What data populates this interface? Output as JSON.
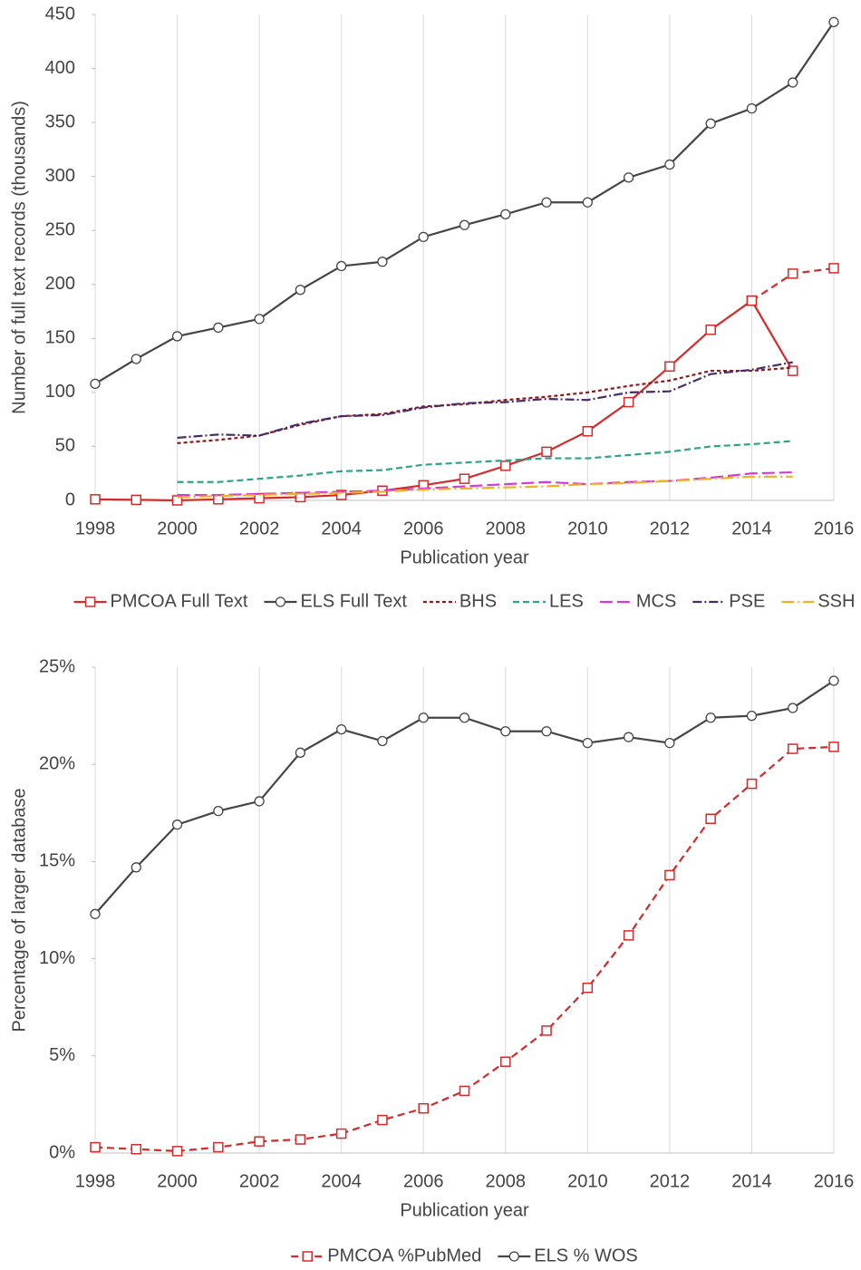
{
  "chart_data": [
    {
      "type": "line",
      "xlabel": "Publication year",
      "ylabel": "Number of full text records (thousands)",
      "x": [
        1998,
        1999,
        2000,
        2001,
        2002,
        2003,
        2004,
        2005,
        2006,
        2007,
        2008,
        2009,
        2010,
        2011,
        2012,
        2013,
        2014,
        2015,
        2016
      ],
      "xlim": [
        1998,
        2016
      ],
      "xticks": [
        1998,
        2000,
        2002,
        2004,
        2006,
        2008,
        2010,
        2012,
        2014,
        2016
      ],
      "ylim": [
        0,
        450
      ],
      "yticks": [
        0,
        50,
        100,
        150,
        200,
        250,
        300,
        350,
        400,
        450
      ],
      "xgrid": true,
      "series": [
        {
          "name": "PMCOA Full Text",
          "color": "#d42a2a",
          "dash": "none",
          "marker": "square",
          "values": [
            1,
            0.5,
            0,
            1,
            2,
            3,
            5,
            9,
            14,
            20,
            32,
            45,
            64,
            91,
            124,
            158,
            185,
            120,
            null
          ]
        },
        {
          "name": "ELS Full Text",
          "color": "#454545",
          "dash": "none",
          "marker": "circle",
          "values": [
            108,
            131,
            152,
            160,
            168,
            195,
            217,
            221,
            244,
            255,
            265,
            276,
            276,
            299,
            311,
            349,
            363,
            387,
            443
          ]
        },
        {
          "name": "BHS",
          "color": "#8b1a1a",
          "dash": "4,3",
          "marker": "none",
          "values": [
            null,
            null,
            53,
            56,
            60,
            70,
            78,
            80,
            87,
            89,
            93,
            96,
            100,
            106,
            111,
            120,
            120,
            123,
            null
          ]
        },
        {
          "name": "LES",
          "color": "#2aa58a",
          "dash": "7,4",
          "marker": "none",
          "values": [
            null,
            null,
            17,
            17,
            20,
            23,
            27,
            28,
            33,
            35,
            37,
            39,
            39,
            42,
            45,
            50,
            52,
            55,
            null
          ]
        },
        {
          "name": "MCS",
          "color": "#d63ad6",
          "dash": "14,5",
          "marker": "none",
          "values": [
            null,
            null,
            5,
            5,
            6,
            7,
            8,
            9,
            11,
            13,
            15,
            17,
            15,
            17,
            18,
            21,
            25,
            26,
            null
          ]
        },
        {
          "name": "PSE",
          "color": "#4b2a6b",
          "dash": "10,3,2,3",
          "marker": "none",
          "values": [
            null,
            null,
            58,
            61,
            60,
            71,
            78,
            79,
            86,
            90,
            91,
            94,
            93,
            100,
            101,
            117,
            121,
            128,
            null
          ]
        },
        {
          "name": "SSH",
          "color": "#f0b020",
          "dash": "14,4,2,4",
          "marker": "none",
          "values": [
            null,
            null,
            3,
            4,
            5,
            6,
            7,
            8,
            10,
            11,
            12,
            13,
            15,
            16,
            18,
            20,
            22,
            22,
            null
          ]
        },
        {
          "color": "#d42a2a",
          "dash": "8,5",
          "marker": "square",
          "values": [
            null,
            null,
            null,
            null,
            null,
            null,
            null,
            null,
            null,
            null,
            null,
            null,
            null,
            null,
            null,
            null,
            185,
            210,
            215
          ]
        }
      ]
    },
    {
      "type": "line",
      "xlabel": "Publication year",
      "ylabel": "Percentage of larger database",
      "x": [
        1998,
        1999,
        2000,
        2001,
        2002,
        2003,
        2004,
        2005,
        2006,
        2007,
        2008,
        2009,
        2010,
        2011,
        2012,
        2013,
        2014,
        2015,
        2016
      ],
      "xlim": [
        1998,
        2016
      ],
      "xticks": [
        1998,
        2000,
        2002,
        2004,
        2006,
        2008,
        2010,
        2012,
        2014,
        2016
      ],
      "ylim": [
        0,
        25
      ],
      "yticks": [
        {
          "value": 0,
          "label": "0%"
        },
        {
          "value": 5,
          "label": "5%"
        },
        {
          "value": 10,
          "label": "10%"
        },
        {
          "value": 15,
          "label": "15%"
        },
        {
          "value": 20,
          "label": "20%"
        },
        {
          "value": 25,
          "label": "25%"
        }
      ],
      "xgrid": true,
      "series": [
        {
          "name": "PMCOA %PubMed",
          "color": "#d42a2a",
          "dash": "8,5",
          "marker": "square",
          "values": [
            0.3,
            0.2,
            0.1,
            0.3,
            0.6,
            0.7,
            1.0,
            1.7,
            2.3,
            3.2,
            4.7,
            6.3,
            8.5,
            11.2,
            14.3,
            17.2,
            19.0,
            20.8,
            20.9
          ]
        },
        {
          "name": "ELS % WOS",
          "color": "#454545",
          "dash": "none",
          "marker": "circle",
          "values": [
            12.3,
            14.7,
            16.9,
            17.6,
            18.1,
            20.6,
            21.8,
            21.2,
            22.4,
            22.4,
            21.7,
            21.7,
            21.1,
            21.4,
            21.1,
            22.4,
            22.5,
            22.9,
            24.3
          ]
        }
      ]
    }
  ]
}
